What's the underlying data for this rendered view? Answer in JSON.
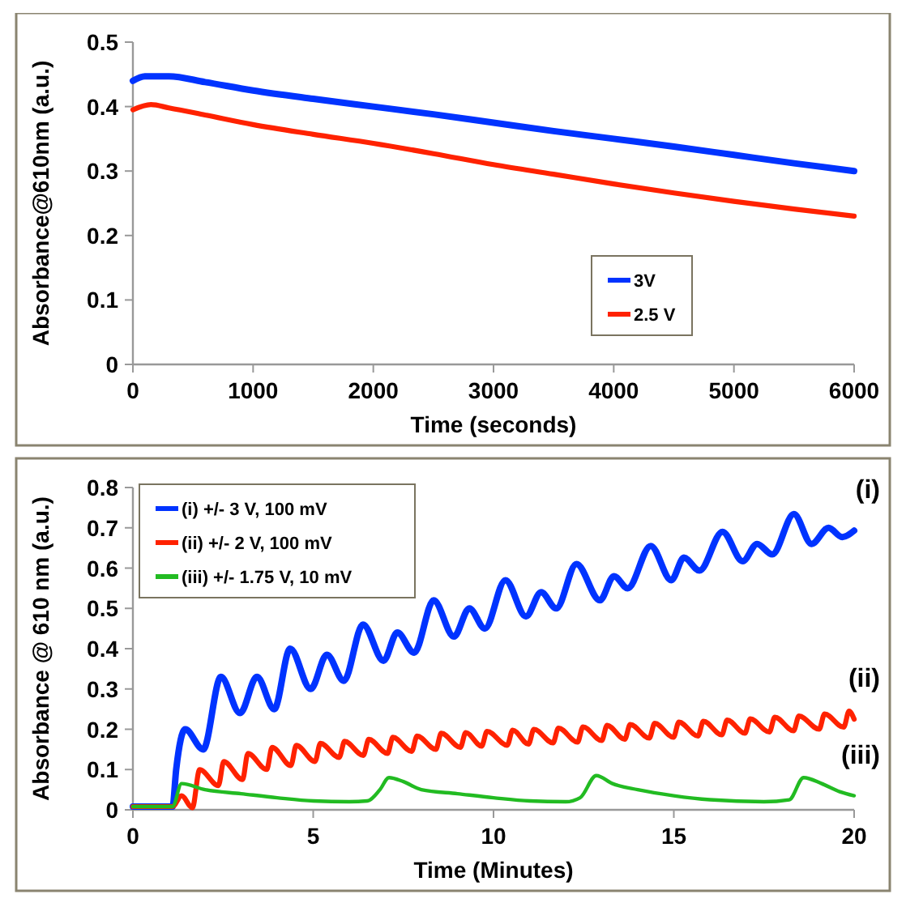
{
  "chart_data": [
    {
      "type": "line",
      "xlabel": "Time (seconds)",
      "ylabel": "Absorbance@610nm (a.u.)",
      "xlim": [
        0,
        6000
      ],
      "ylim": [
        0,
        0.5
      ],
      "xticks": [
        0,
        1000,
        2000,
        3000,
        4000,
        5000,
        6000
      ],
      "yticks": [
        0,
        0.1,
        0.2,
        0.3,
        0.4,
        0.5
      ],
      "legend": "bottom right",
      "grid": false,
      "marker": "none",
      "line_style": "solid",
      "series": [
        {
          "name": "3V",
          "color": "#0033ff",
          "x": [
            0,
            100,
            300,
            600,
            1000,
            1500,
            2000,
            2500,
            3000,
            3500,
            4000,
            4500,
            5000,
            5500,
            6000
          ],
          "values": [
            0.44,
            0.447,
            0.447,
            0.438,
            0.425,
            0.412,
            0.4,
            0.388,
            0.375,
            0.362,
            0.35,
            0.338,
            0.325,
            0.312,
            0.3
          ]
        },
        {
          "name": "2.5 V",
          "color": "#ff2200",
          "x": [
            0,
            150,
            300,
            600,
            1000,
            1500,
            2000,
            2500,
            3000,
            3500,
            4000,
            4500,
            5000,
            5500,
            6000
          ],
          "values": [
            0.395,
            0.403,
            0.398,
            0.387,
            0.372,
            0.357,
            0.343,
            0.327,
            0.31,
            0.295,
            0.28,
            0.266,
            0.253,
            0.241,
            0.23
          ]
        }
      ]
    },
    {
      "type": "line",
      "xlabel": "Time (Minutes)",
      "ylabel": "Absorbance @ 610 nm (a.u.)",
      "xlim": [
        0,
        20
      ],
      "ylim": [
        0,
        0.8
      ],
      "xticks": [
        0,
        5,
        10,
        15,
        20
      ],
      "yticks": [
        0,
        0.1,
        0.2,
        0.3,
        0.4,
        0.5,
        0.6,
        0.7,
        0.8
      ],
      "legend": "top left",
      "grid": false,
      "marker": "none",
      "line_style": "solid",
      "annotations": [
        "(i)",
        "(ii)",
        "(iii)"
      ],
      "series": [
        {
          "name": "(i) +/- 3 V, 100 mV",
          "color": "#0033ff",
          "x": [
            0,
            1.1,
            1.2,
            1.45,
            1.95,
            2.44,
            2.97,
            3.44,
            3.92,
            4.36,
            4.93,
            5.38,
            5.85,
            6.38,
            6.95,
            7.33,
            7.8,
            8.34,
            8.9,
            9.33,
            9.76,
            10.33,
            10.9,
            11.32,
            11.74,
            12.3,
            12.95,
            13.34,
            13.72,
            14.36,
            14.93,
            15.28,
            15.71,
            16.35,
            16.91,
            17.31,
            17.73,
            18.33,
            18.82,
            19.29,
            19.67,
            20
          ],
          "values": [
            0.008,
            0.008,
            0.1,
            0.2,
            0.15,
            0.33,
            0.24,
            0.33,
            0.25,
            0.4,
            0.3,
            0.385,
            0.32,
            0.46,
            0.37,
            0.44,
            0.39,
            0.52,
            0.43,
            0.5,
            0.45,
            0.57,
            0.48,
            0.54,
            0.5,
            0.61,
            0.52,
            0.58,
            0.55,
            0.655,
            0.57,
            0.626,
            0.594,
            0.69,
            0.617,
            0.66,
            0.634,
            0.734,
            0.66,
            0.7,
            0.677,
            0.693
          ]
        },
        {
          "name": "(ii) +/- 2 V, 100 mV",
          "color": "#ff2200",
          "x": [
            0,
            1.1,
            1.35,
            1.65,
            1.85,
            2.37,
            2.52,
            3.04,
            3.19,
            3.71,
            3.86,
            4.38,
            4.53,
            5.05,
            5.2,
            5.72,
            5.87,
            6.39,
            6.54,
            7.06,
            7.21,
            7.73,
            7.88,
            8.4,
            8.55,
            9.08,
            9.23,
            9.67,
            9.82,
            10.38,
            10.53,
            10.97,
            11.12,
            11.65,
            11.8,
            12.33,
            12.48,
            13.0,
            13.15,
            13.64,
            13.79,
            14.32,
            14.47,
            14.99,
            15.14,
            15.67,
            15.82,
            16.33,
            16.48,
            16.97,
            17.12,
            17.65,
            17.8,
            18.32,
            18.47,
            19.03,
            19.18,
            19.71,
            19.86,
            20
          ],
          "values": [
            0.008,
            0.008,
            0.035,
            0.005,
            0.1,
            0.06,
            0.12,
            0.075,
            0.14,
            0.1,
            0.155,
            0.11,
            0.16,
            0.12,
            0.165,
            0.13,
            0.17,
            0.135,
            0.175,
            0.14,
            0.18,
            0.145,
            0.183,
            0.15,
            0.19,
            0.155,
            0.192,
            0.158,
            0.195,
            0.16,
            0.198,
            0.163,
            0.2,
            0.166,
            0.203,
            0.168,
            0.206,
            0.172,
            0.21,
            0.175,
            0.212,
            0.178,
            0.215,
            0.18,
            0.218,
            0.183,
            0.22,
            0.186,
            0.223,
            0.19,
            0.226,
            0.193,
            0.23,
            0.196,
            0.233,
            0.2,
            0.238,
            0.205,
            0.245,
            0.225
          ]
        },
        {
          "name": "(iii) +/- 1.75 V, 10 mV",
          "color": "#22bb22",
          "x": [
            0,
            1.1,
            1.35,
            2,
            3,
            4,
            5,
            6,
            6.5,
            6.85,
            7.1,
            7.5,
            8,
            9,
            10,
            11,
            12,
            12.4,
            12.85,
            13.3,
            14,
            15,
            16,
            17.5,
            18.2,
            18.6,
            19.1,
            19.6,
            20
          ],
          "values": [
            0.008,
            0.008,
            0.065,
            0.05,
            0.04,
            0.03,
            0.022,
            0.02,
            0.022,
            0.05,
            0.08,
            0.07,
            0.05,
            0.04,
            0.03,
            0.022,
            0.02,
            0.03,
            0.085,
            0.065,
            0.05,
            0.035,
            0.025,
            0.02,
            0.025,
            0.08,
            0.065,
            0.045,
            0.035
          ]
        }
      ]
    }
  ]
}
